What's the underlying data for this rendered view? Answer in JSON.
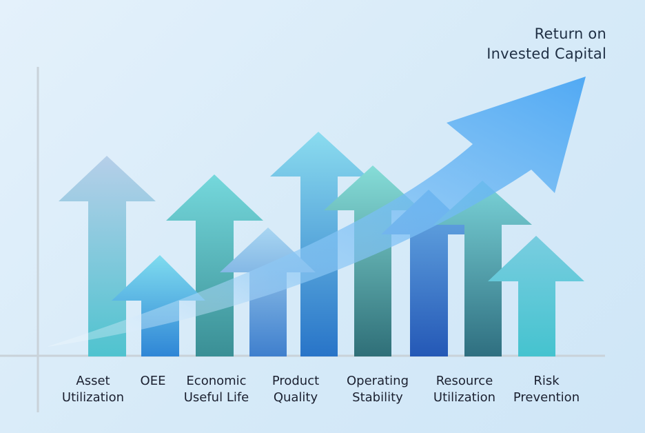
{
  "goal": {
    "line1": "Return on",
    "line2": "Invested Capital"
  },
  "categories": [
    {
      "line1": "Asset",
      "line2": "Utilization",
      "color_top": "#b6cfe9",
      "color_bottom": "#4fc3cf"
    },
    {
      "line1": "OEE",
      "line2": "",
      "color_top": "#7fdcef",
      "color_bottom": "#2f86d6"
    },
    {
      "line1": "Economic",
      "line2": "Useful Life",
      "color_top": "#75d8dc",
      "color_bottom": "#3a8f95"
    },
    {
      "line1": "Product",
      "line2": "Quality",
      "color_top": "#a9d6f2",
      "color_bottom": "#3f7fcd"
    },
    {
      "line1": "Operating",
      "line2": "Stability",
      "color_top": "#8bdcef",
      "color_bottom": "#2874c8"
    },
    {
      "line1": "Resource",
      "line2": "Utilization",
      "color_top": "#7ad3d8",
      "color_bottom": "#2f6f80"
    },
    {
      "line1": "Risk",
      "line2": "Prevention",
      "color_top": "#79cde0",
      "color_bottom": "#45c3cf"
    }
  ],
  "colors": {
    "axis": "#c9d2d9",
    "trend_arrow": "#5aaef5",
    "text": "#1b2030"
  }
}
